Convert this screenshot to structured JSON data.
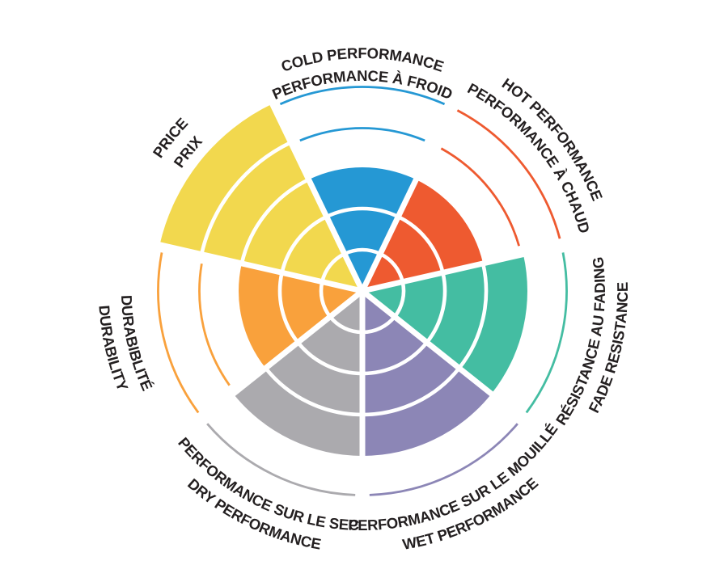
{
  "chart_data": {
    "type": "polar_sector_rating",
    "scale": {
      "min": 0,
      "max": 5,
      "levels": 5
    },
    "grid": "concentric-rings",
    "legend_position": "none",
    "categories": [
      {
        "id": "cold-performance",
        "lines": [
          "COLD PERFORMANCE",
          "PERFORMANCE À FROID"
        ],
        "value": 3,
        "color": "#2598D4"
      },
      {
        "id": "hot-performance",
        "lines": [
          "HOT PERFORMANCE",
          "PERFORMANCE À CHAUD"
        ],
        "value": 3,
        "color": "#EE5A30"
      },
      {
        "id": "fade-resistance",
        "lines": [
          "RÉSISTANCE AU FADING",
          "FADE RESISTANCE"
        ],
        "value": 4,
        "color": "#44BDA2"
      },
      {
        "id": "wet-performance",
        "lines": [
          "PERFORMANCE SUR LE MOUILLÉ",
          "WET PERFORMANCE"
        ],
        "value": 4,
        "color": "#8C86B6"
      },
      {
        "id": "dry-performance",
        "lines": [
          "PERFORMANCE SUR LE SEC",
          "DRY PERFORMANCE"
        ],
        "value": 4,
        "color": "#ABAAAE"
      },
      {
        "id": "durability",
        "lines": [
          "DURABIBLITÉ",
          "DURABILITY"
        ],
        "value": 3,
        "color": "#F9A13C"
      },
      {
        "id": "price",
        "lines": [
          "PRICE",
          "PRIX"
        ],
        "value": 5,
        "color": "#F2D84E"
      }
    ],
    "colors": {
      "background": "#FFFFFF",
      "divider": "#FFFFFF",
      "text": "#231F20"
    }
  }
}
